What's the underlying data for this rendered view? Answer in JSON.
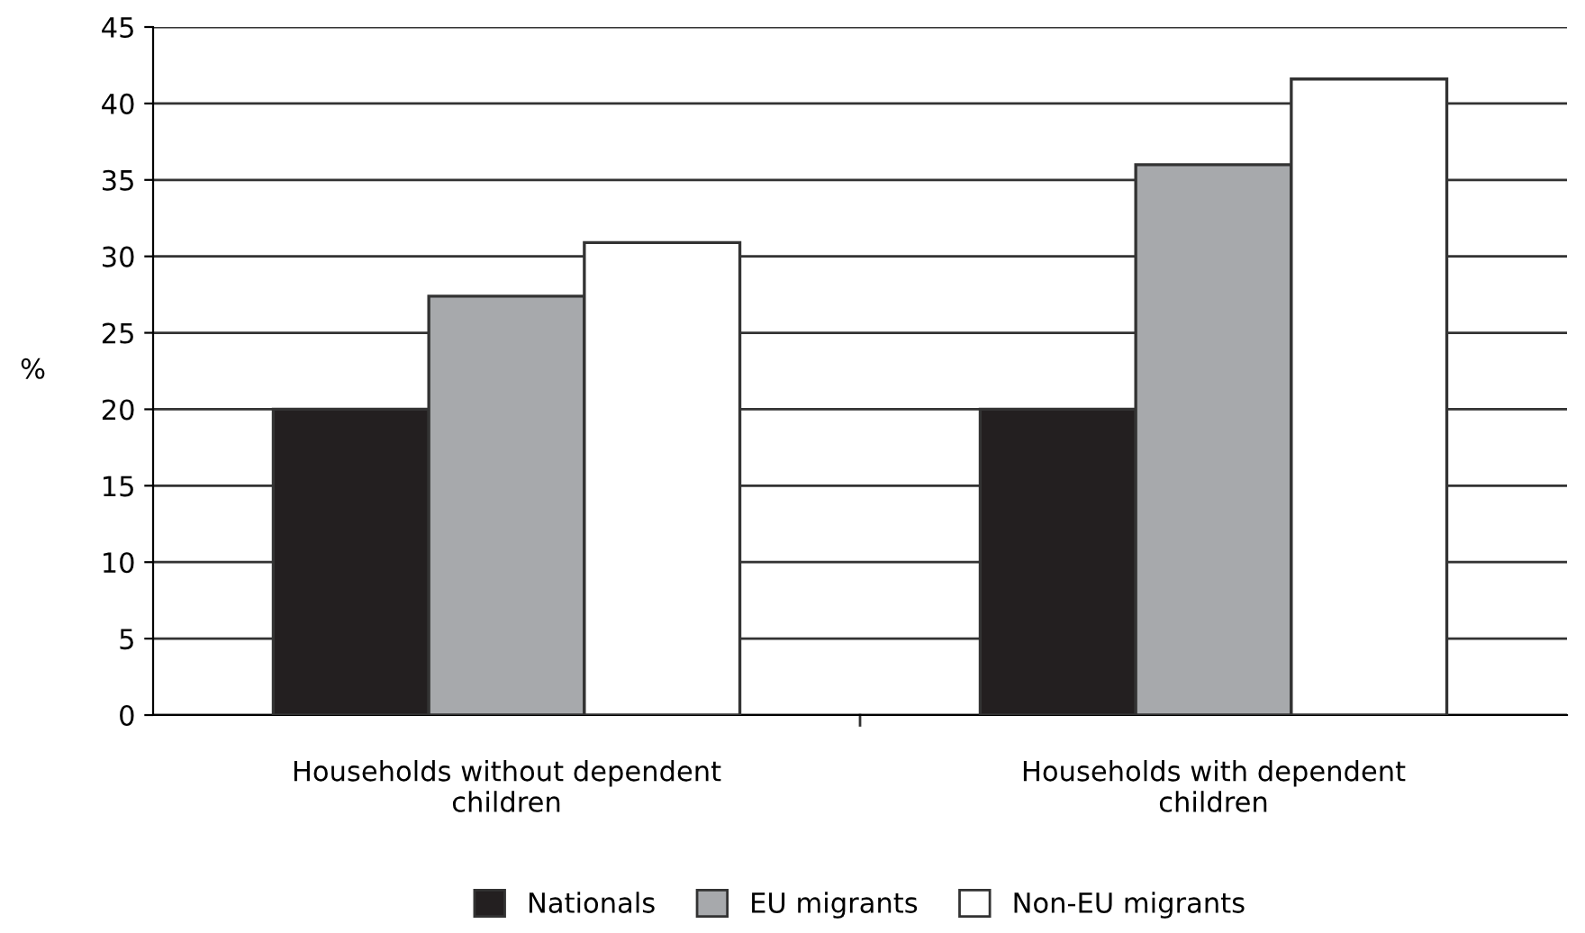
{
  "chart_data": {
    "type": "bar",
    "ylabel": "%",
    "categories": [
      "Households without dependent\nchildren",
      "Households with dependent\nchildren"
    ],
    "series": [
      {
        "name": "Nationals",
        "color": "#231f20",
        "values": [
          20,
          20
        ]
      },
      {
        "name": "EU migrants",
        "color": "#a7a9ac",
        "values": [
          27.4,
          36
        ]
      },
      {
        "name": "Non-EU migrants",
        "color": "#ffffff",
        "values": [
          30.9,
          41.6
        ]
      }
    ],
    "ylim": [
      0,
      45
    ],
    "yticks": [
      0,
      5,
      10,
      15,
      20,
      25,
      30,
      35,
      40,
      45
    ],
    "grid": "y",
    "legend": "bottom"
  }
}
